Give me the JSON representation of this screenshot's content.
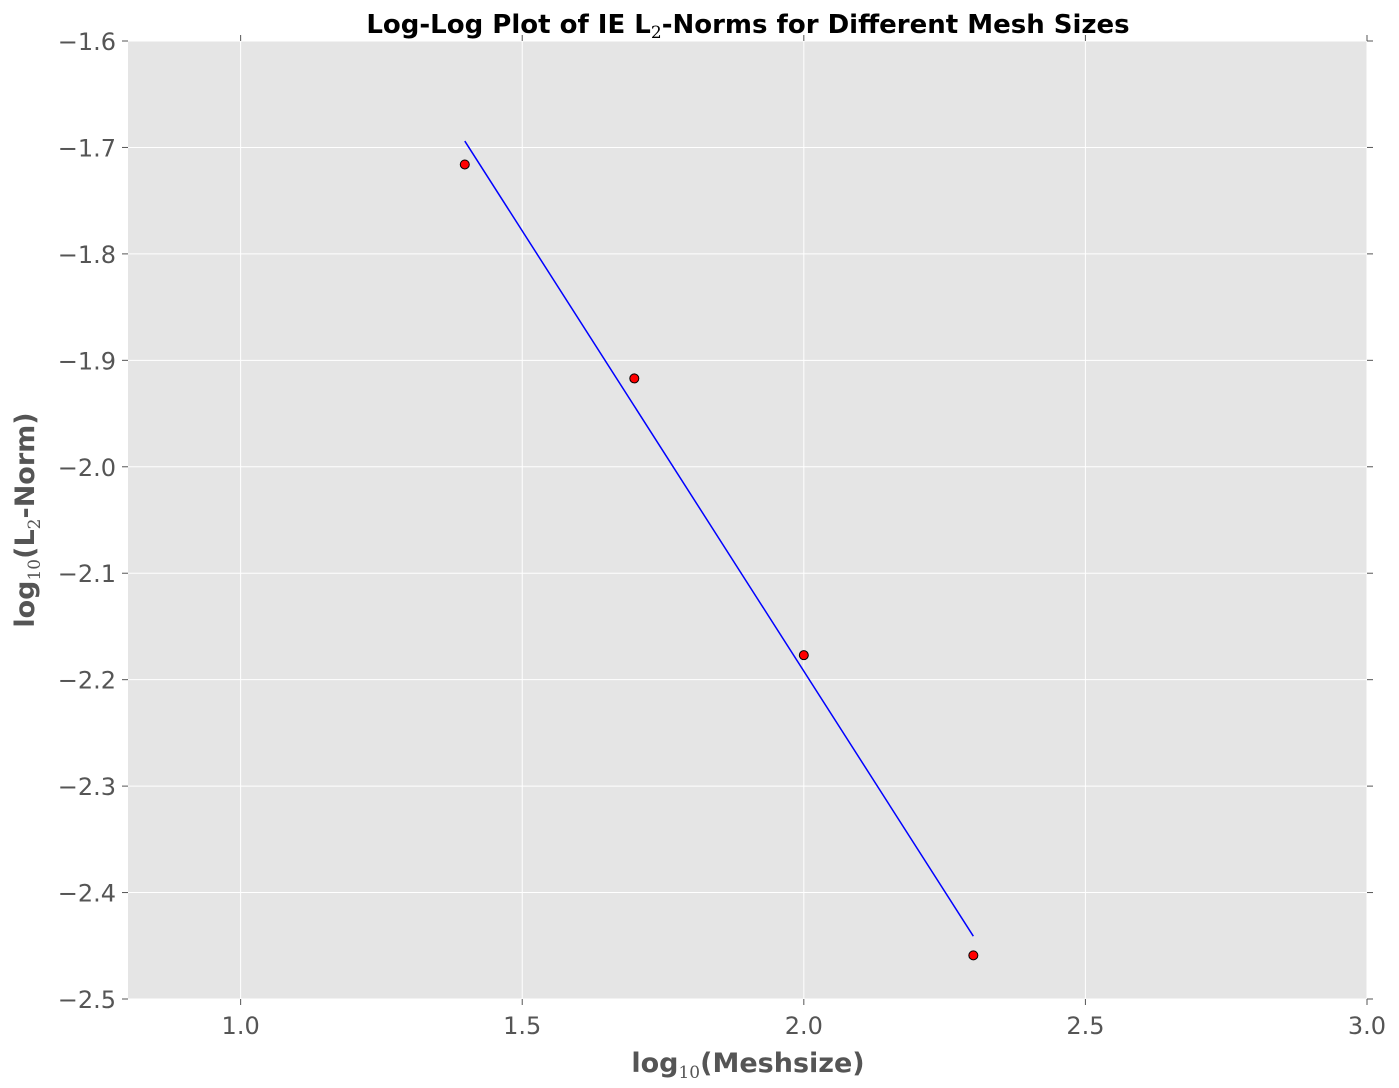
{
  "chart_data": {
    "type": "scatter",
    "title_parts": [
      "Log-Log Plot of IE L",
      "2",
      "-Norms for Different Mesh Sizes"
    ],
    "xlabel_parts": [
      "log",
      "10",
      "(Meshsize)"
    ],
    "ylabel_parts": [
      "log",
      "10",
      "(L",
      "2",
      "-Norm)"
    ],
    "xlim": [
      0.8,
      3.0
    ],
    "ylim": [
      -2.5,
      -1.6
    ],
    "xticks": [
      1.0,
      1.5,
      2.0,
      2.5,
      3.0
    ],
    "xtick_labels": [
      "1.0",
      "1.5",
      "2.0",
      "2.5",
      "3.0"
    ],
    "yticks": [
      -2.5,
      -2.4,
      -2.3,
      -2.2,
      -2.1,
      -2.0,
      -1.9,
      -1.8,
      -1.7,
      -1.6
    ],
    "ytick_labels": [
      "−2.5",
      "−2.4",
      "−2.3",
      "−2.2",
      "−2.1",
      "−2.0",
      "−1.9",
      "−1.8",
      "−1.7",
      "−1.6"
    ],
    "grid": true,
    "series": [
      {
        "kind": "points",
        "color": "#ff0000",
        "x": [
          1.398,
          1.699,
          2.0,
          2.301
        ],
        "y": [
          -1.716,
          -1.917,
          -2.177,
          -2.459
        ]
      },
      {
        "kind": "fit-line",
        "color": "#0000ff",
        "x": [
          1.398,
          2.301
        ],
        "y": [
          -1.694,
          -2.441
        ]
      }
    ]
  }
}
